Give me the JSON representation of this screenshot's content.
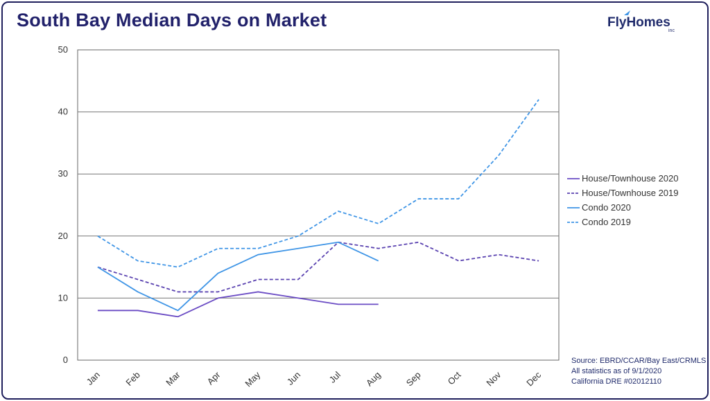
{
  "header": {
    "title": "South Bay Median Days on Market",
    "logo_text": "FlyHomes",
    "logo_suffix": "inc"
  },
  "chart_data": {
    "type": "line",
    "title": "South Bay Median Days on Market",
    "xlabel": "",
    "ylabel": "",
    "categories": [
      "Jan",
      "Feb",
      "Mar",
      "Apr",
      "May",
      "Jun",
      "Jul",
      "Aug",
      "Sep",
      "Oct",
      "Nov",
      "Dec"
    ],
    "ylim": [
      0,
      50
    ],
    "yticks": [
      0,
      10,
      20,
      30,
      40,
      50
    ],
    "grid": "horizontal",
    "legend_position": "right",
    "series": [
      {
        "name": "House/Townhouse 2020",
        "color": "#6a4bc4",
        "dashed": false,
        "values": [
          8,
          8,
          7,
          10,
          11,
          10,
          9,
          9,
          null,
          null,
          null,
          null
        ]
      },
      {
        "name": "House/Townhouse 2019",
        "color": "#5a42b0",
        "dashed": true,
        "values": [
          15,
          13,
          11,
          11,
          13,
          13,
          19,
          18,
          19,
          16,
          17,
          16
        ]
      },
      {
        "name": "Condo 2020",
        "color": "#3f95e6",
        "dashed": false,
        "values": [
          15,
          11,
          8,
          14,
          17,
          18,
          19,
          16,
          null,
          null,
          null,
          null
        ]
      },
      {
        "name": "Condo 2019",
        "color": "#3f95e6",
        "dashed": true,
        "values": [
          20,
          16,
          15,
          18,
          18,
          20,
          24,
          22,
          26,
          26,
          33,
          42
        ]
      }
    ]
  },
  "footer": {
    "source_lines": [
      "Source: EBRD/CCAR/Bay East/CRMLS",
      "All statistics as of 9/1/2020",
      "California DRE #02012110"
    ]
  }
}
